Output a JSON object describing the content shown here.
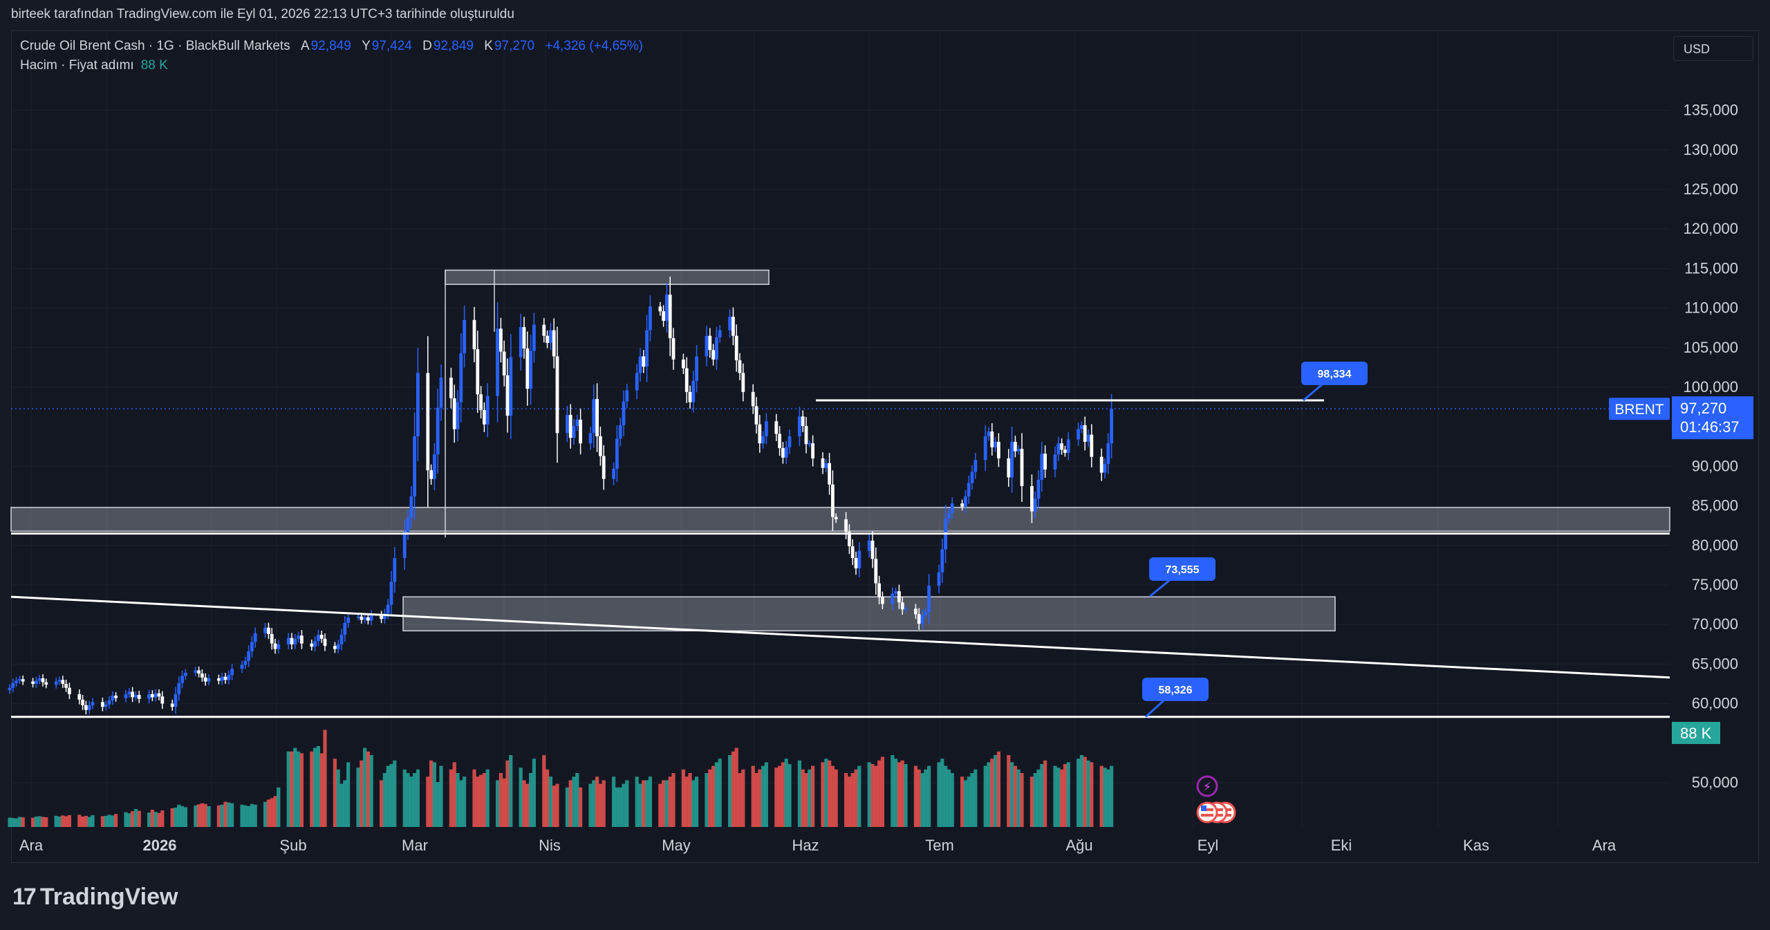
{
  "header": {
    "created_text": "birteek tarafından TradingView.com ile Eyl 01, 2026 22:13 UTC+3 tarihinde oluşturuldu"
  },
  "legend": {
    "symbol_line": "Crude Oil Brent Cash · 1G · BlackBull Markets",
    "open_label": "A",
    "open_value": "92,849",
    "high_label": "Y",
    "high_value": "97,424",
    "low_label": "D",
    "low_value": "92,849",
    "close_label": "K",
    "close_value": "97,270",
    "change": "+4,326 (+4,65%)",
    "volume_line": "Hacim · Fiyat adımı",
    "volume_value": "88 K"
  },
  "currency": "USD",
  "footer": {
    "logo_text": "TradingView"
  },
  "colors": {
    "background": "#131722",
    "up": "#2962ff",
    "down": "#ffffff",
    "vol_up": "#26a69a",
    "vol_down": "#ef5350",
    "grid": "#1e222d",
    "text": "#d1d4dc"
  },
  "chart_data": {
    "type": "candlestick",
    "symbol": "BRENT",
    "ylim": [
      45000,
      140000
    ],
    "y_ticks": [
      "135,000",
      "130,000",
      "125,000",
      "120,000",
      "115,000",
      "110,000",
      "105,000",
      "100,000",
      "90,000",
      "85,000",
      "80,000",
      "75,000",
      "70,000",
      "65,000",
      "60,000",
      "50,000"
    ],
    "x_ticks": [
      "Ara",
      "2026",
      "Şub",
      "Mar",
      "Nis",
      "May",
      "Haz",
      "Tem",
      "Ağu",
      "Eyl",
      "Eki",
      "Kas",
      "Ara"
    ],
    "last_price_label": {
      "symbol": "BRENT",
      "price": "97,270",
      "countdown": "01:46:37",
      "value": 97270
    },
    "volume_label": "88 K",
    "callouts": [
      {
        "text": "98,334",
        "value": 98334
      },
      {
        "text": "73,555",
        "value": 73555
      },
      {
        "text": "58,326",
        "value": 58326
      }
    ],
    "zones": [
      {
        "from_date": "Mar 3",
        "to_date": "May 20",
        "low": 113000,
        "high": 114800
      },
      {
        "from_date": "Ara",
        "to_date": "end",
        "low": 81800,
        "high": 84800
      },
      {
        "from_date": "Feb 26",
        "to_date": "Sep 15",
        "low": 69200,
        "high": 73500
      }
    ],
    "hlines": [
      {
        "value": 98334,
        "from_date": "May 27",
        "to_date": "Sep 15"
      },
      {
        "value": 81500,
        "from_date": "Ara",
        "to_date": "end"
      },
      {
        "value": 58326,
        "from_date": "Ara",
        "to_date": "end"
      }
    ],
    "trendline": {
      "start_value": 73500,
      "end_value": 63300
    },
    "closes": [
      62000,
      62600,
      62900,
      63100,
      62800,
      62500,
      62900,
      63200,
      62700,
      62400,
      62800,
      63000,
      62500,
      62000,
      61200,
      60500,
      59800,
      59200,
      59800,
      60200,
      59600,
      59900,
      60400,
      61000,
      60700,
      61200,
      61500,
      60800,
      61100,
      60600,
      61200,
      60800,
      61300,
      60900,
      60000,
      59600,
      61200,
      62600,
      63500,
      63900,
      64200,
      63800,
      63300,
      62800,
      63200,
      62900,
      63400,
      63000,
      63600,
      64400,
      64900,
      65400,
      66600,
      67800,
      68900,
      69600,
      68800,
      67600,
      66900,
      67500,
      68300,
      67500,
      68200,
      68600,
      67600,
      67200,
      67900,
      68700,
      68200,
      67300,
      66900,
      67500,
      68700,
      70200,
      70900,
      71000,
      70600,
      70900,
      70500,
      71200,
      70700,
      71400,
      72500,
      75400,
      78400,
      81700,
      83500,
      86200,
      93800,
      101800,
      89500,
      88400,
      91500,
      97400,
      101200,
      98600,
      94700,
      98100,
      104300,
      108500,
      104800,
      99100,
      97100,
      95300,
      98900,
      107400,
      104500,
      101500,
      96400,
      103800,
      107600,
      104900,
      99800,
      104600,
      107900,
      106500,
      105600,
      107200,
      103900,
      94200,
      96500,
      93600,
      95100,
      95900,
      92900,
      94200,
      98500,
      93800,
      91300,
      88400,
      89700,
      93500,
      95200,
      98200,
      99600,
      101800,
      103900,
      102600,
      107200,
      110200,
      109600,
      108400,
      111700,
      106200,
      103500,
      102400,
      99400,
      98100,
      100800,
      103900,
      106500,
      104700,
      103500,
      106300,
      107200,
      108900,
      106500,
      103400,
      101800,
      99400,
      97600,
      95300,
      92900,
      93800,
      95700,
      94100,
      92300,
      91100,
      92400,
      93800,
      96300,
      95100,
      92800,
      92900,
      91000,
      89800,
      90400,
      87700,
      83600,
      83300,
      81700,
      79900,
      78400,
      77100,
      79300,
      80600,
      78300,
      75200,
      73500,
      72600,
      73900,
      74200,
      72800,
      71900,
      72000,
      71300,
      70100,
      71200,
      71600,
      74900,
      76600,
      79500,
      83400,
      84100,
      85300,
      84900,
      86200,
      87900,
      89300,
      90800,
      93800,
      94400,
      92400,
      93100,
      91000,
      88600,
      93100,
      91900,
      92200,
      87500,
      84300,
      85900,
      88300,
      91600,
      89600,
      91500,
      92900,
      92100,
      91700,
      93400,
      94700,
      95200,
      93100,
      94000,
      91200,
      89200,
      90300,
      92900,
      97270
    ],
    "volumes": [
      26,
      25,
      24,
      28,
      27,
      26,
      29,
      30,
      28,
      27,
      31,
      29,
      32,
      30,
      33,
      34,
      29,
      31,
      28,
      33,
      30,
      31,
      34,
      32,
      36,
      41,
      38,
      44,
      50,
      45,
      40,
      48,
      42,
      39,
      46,
      52,
      54,
      62,
      58,
      55,
      60,
      63,
      66,
      64,
      58,
      60,
      62,
      70,
      68,
      66,
      62,
      60,
      58,
      64,
      62,
      70,
      76,
      80,
      86,
      110,
      210,
      210,
      220,
      210,
      205,
      210,
      220,
      225,
      205,
      270,
      190,
      160,
      120,
      130,
      180,
      165,
      185,
      220,
      210,
      200,
      130,
      150,
      170,
      175,
      185,
      160,
      150,
      140,
      150,
      160,
      140,
      185,
      180,
      125,
      170,
      160,
      180,
      150,
      130,
      140,
      160,
      140,
      145,
      150,
      160,
      130,
      150,
      135,
      185,
      200,
      165,
      130,
      120,
      150,
      190,
      200,
      160,
      140,
      115,
      120,
      110,
      130,
      140,
      150,
      110,
      120,
      130,
      140,
      120,
      130,
      140,
      110,
      110,
      120,
      130,
      140,
      120,
      130,
      130,
      140,
      120,
      130,
      130,
      140,
      150,
      160,
      140,
      150,
      130,
      140,
      150,
      160,
      170,
      180,
      190,
      200,
      210,
      220,
      150,
      160,
      170,
      150,
      160,
      170,
      180,
      165,
      170,
      180,
      190,
      175,
      185,
      160,
      150,
      160,
      170,
      180,
      190,
      185,
      170,
      160,
      150,
      140,
      150,
      160,
      170,
      180,
      175,
      170,
      185,
      195,
      200,
      190,
      180,
      185,
      175,
      170,
      160,
      150,
      160,
      170,
      180,
      190,
      170,
      160,
      150,
      140,
      130,
      140,
      150,
      160,
      170,
      180,
      190,
      200,
      210,
      200,
      180,
      170,
      160,
      150,
      140,
      150,
      160,
      175,
      185,
      170,
      165,
      160,
      175,
      180,
      190,
      200,
      195,
      185,
      180,
      170,
      165,
      160,
      170,
      180,
      185,
      180,
      170,
      160,
      150,
      140,
      150,
      160,
      170,
      185,
      190
    ]
  }
}
